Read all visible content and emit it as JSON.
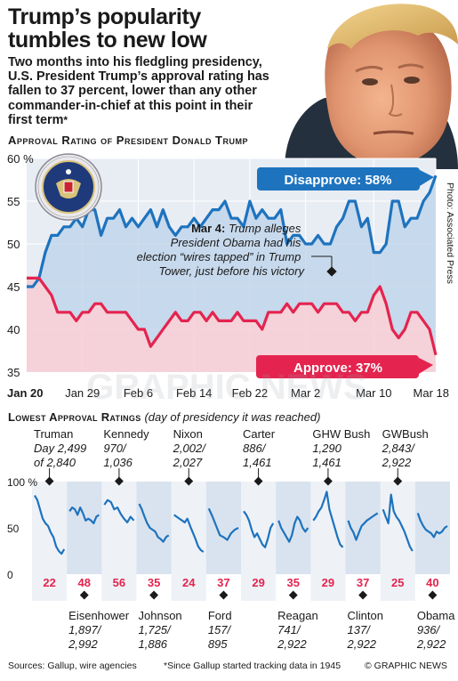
{
  "header": {
    "title": "Trump’s popularity tumbles to new low",
    "intro": "Two months into his fledgling presidency, U.S. President Trump’s approval rating has fallen to 37 percent, lower than any other commander-in-chief at this point in their first term",
    "intro_mark": "*",
    "photo_credit": "Photo: Associated Press"
  },
  "chart_data": [
    {
      "type": "line",
      "title": "Approval Rating of President Donald Trump",
      "ylim": [
        35,
        60
      ],
      "y_ticks": [
        "35",
        "40",
        "45",
        "50",
        "55",
        "60 %"
      ],
      "x_ticks": [
        "Jan 20",
        "Jan 29",
        "Feb 6",
        "Feb 14",
        "Feb 22",
        "Mar 2",
        "Mar 10",
        "Mar 18"
      ],
      "series": [
        {
          "name": "Disapprove",
          "color": "#1e73be",
          "values": [
            45,
            45,
            46,
            49,
            51,
            51,
            52,
            52,
            53,
            52,
            54,
            54,
            51,
            53,
            53,
            54,
            52,
            53,
            52,
            53,
            54,
            52,
            54,
            52,
            51,
            52,
            52,
            53,
            52,
            53,
            54,
            54,
            55,
            53,
            53,
            52,
            55,
            53,
            54,
            53,
            53,
            54,
            50,
            51,
            51,
            50,
            50,
            51,
            50,
            50,
            52,
            53,
            55,
            55,
            52,
            53,
            49,
            49,
            50,
            55,
            55,
            52,
            53,
            53,
            55,
            56,
            58
          ]
        },
        {
          "name": "Approve",
          "color": "#e4244f",
          "values": [
            46,
            46,
            46,
            45,
            44,
            42,
            42,
            42,
            41,
            42,
            42,
            43,
            43,
            42,
            42,
            42,
            42,
            41,
            40,
            40,
            38,
            39,
            40,
            41,
            42,
            41,
            41,
            42,
            42,
            41,
            42,
            41,
            41,
            41,
            42,
            41,
            41,
            41,
            40,
            42,
            42,
            42,
            43,
            42,
            43,
            43,
            43,
            42,
            43,
            43,
            43,
            42,
            42,
            41,
            42,
            42,
            44,
            45,
            43,
            40,
            39,
            40,
            42,
            42,
            41,
            40,
            37
          ]
        }
      ],
      "callouts": {
        "disapprove": "Disapprove: 58%",
        "approve": "Approve: 37%",
        "event_date": "Mar 4:",
        "event_text": "Trump alleges President Obama had his election “wires tapped” in Trump Tower, just before his victory"
      }
    },
    {
      "type": "line",
      "title": "Lowest Approval Ratings",
      "subtitle": "(day of presidency it was reached)",
      "ylim": [
        0,
        100
      ],
      "y_ticks": [
        "0",
        "50",
        "100 %"
      ],
      "presidents": [
        {
          "name": "Truman",
          "day": "Day 2,499 of 2,840",
          "low": 22
        },
        {
          "name": "Eisenhower",
          "day": "1,897/ 2,992",
          "low": 48
        },
        {
          "name": "Kennedy",
          "day": "970/ 1,036",
          "low": 56
        },
        {
          "name": "Johnson",
          "day": "1,725/ 1,886",
          "low": 35
        },
        {
          "name": "Nixon",
          "day": "2,002/ 2,027",
          "low": 24
        },
        {
          "name": "Ford",
          "day": "157/ 895",
          "low": 37
        },
        {
          "name": "Carter",
          "day": "886/ 1,461",
          "low": 29
        },
        {
          "name": "Reagan",
          "day": "741/ 2,922",
          "low": 35
        },
        {
          "name": "GHW Bush",
          "day": "1,290 1,461",
          "low": 29
        },
        {
          "name": "Clinton",
          "day": "137/ 2,922",
          "low": 37
        },
        {
          "name": "GWBush",
          "day": "2,843/ 2,922",
          "low": 25
        },
        {
          "name": "Obama",
          "day": "936/ 2,922",
          "low": 40
        }
      ]
    }
  ],
  "footer": {
    "sources": "Sources: Gallup, wire agencies",
    "note": "*Since Gallup started tracking data in 1945",
    "copyright": "© GRAPHIC NEWS"
  },
  "watermark": "GRAPHIC NEWS"
}
